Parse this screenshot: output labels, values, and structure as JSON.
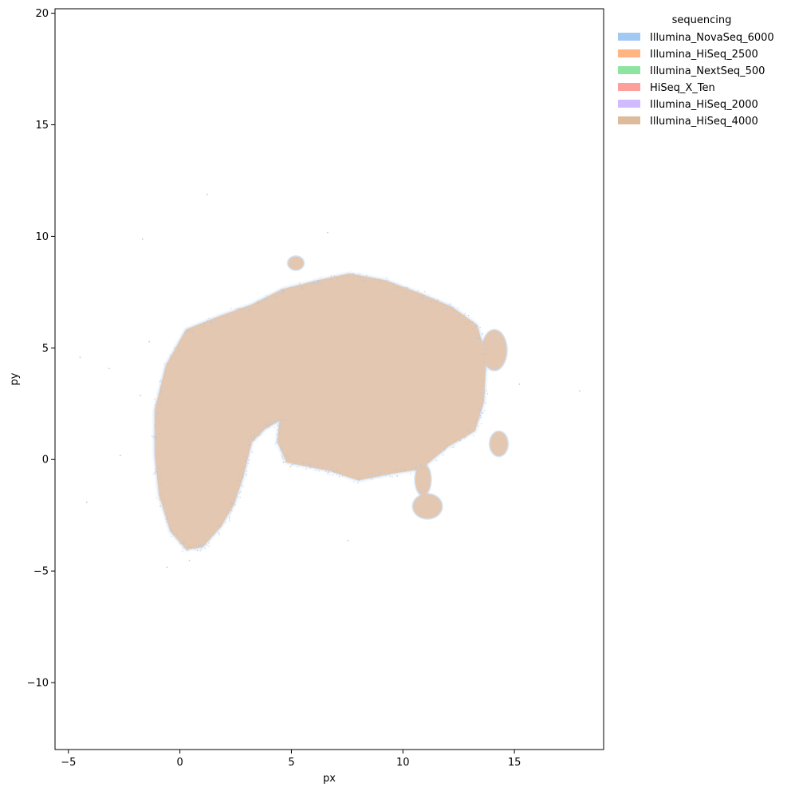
{
  "chart_data": {
    "type": "scatter",
    "title": "",
    "xlabel": "px",
    "ylabel": "py",
    "xlim": [
      -5.6,
      19.0
    ],
    "ylim": [
      -13.0,
      20.2
    ],
    "xticks": [
      -5,
      0,
      5,
      10,
      15
    ],
    "yticks": [
      -10,
      -5,
      0,
      5,
      10,
      15,
      20
    ],
    "xtick_labels": [
      "−5",
      "0",
      "5",
      "10",
      "15"
    ],
    "ytick_labels": [
      "−10",
      "−5",
      "0",
      "5",
      "10",
      "15",
      "20"
    ],
    "grid": false,
    "legend": {
      "title": "sequencing",
      "placement": "outside-top-right",
      "entries": [
        {
          "name": "Illumina_NovaSeq_6000",
          "color": "#a1c9f4"
        },
        {
          "name": "Illumina_HiSeq_2500",
          "color": "#ffb482"
        },
        {
          "name": "Illumina_NextSeq_500",
          "color": "#8de5a1"
        },
        {
          "name": "HiSeq_X_Ten",
          "color": "#ff9f9b"
        },
        {
          "name": "Illumina_HiSeq_2000",
          "color": "#d0bbff"
        },
        {
          "name": "Illumina_HiSeq_4000",
          "color": "#debb9b"
        }
      ]
    },
    "series": [
      {
        "name": "Illumina_HiSeq_4000",
        "color": "#debb9b",
        "regions": [
          {
            "shape": "polygon",
            "points": [
              [
                -1.1,
                2.2
              ],
              [
                -0.6,
                4.2
              ],
              [
                0.3,
                5.8
              ],
              [
                1.8,
                6.4
              ],
              [
                3.2,
                6.9
              ],
              [
                4.6,
                7.6
              ],
              [
                6.2,
                8.0
              ],
              [
                7.6,
                8.3
              ],
              [
                9.2,
                8.0
              ],
              [
                10.8,
                7.4
              ],
              [
                12.2,
                6.8
              ],
              [
                13.3,
                6.0
              ],
              [
                13.7,
                4.6
              ],
              [
                13.6,
                2.6
              ],
              [
                13.2,
                1.3
              ],
              [
                12.0,
                0.6
              ],
              [
                10.8,
                -0.4
              ],
              [
                9.5,
                -0.6
              ],
              [
                8.0,
                -0.9
              ],
              [
                6.8,
                -0.5
              ],
              [
                5.8,
                -0.3
              ],
              [
                4.8,
                -0.1
              ],
              [
                4.4,
                0.8
              ],
              [
                4.5,
                1.8
              ],
              [
                3.8,
                1.4
              ],
              [
                3.2,
                0.8
              ],
              [
                2.8,
                -0.8
              ],
              [
                2.4,
                -2.0
              ],
              [
                1.8,
                -3.0
              ],
              [
                1.0,
                -3.9
              ],
              [
                0.3,
                -4.0
              ],
              [
                -0.4,
                -3.2
              ],
              [
                -0.9,
                -1.6
              ],
              [
                -1.1,
                0.2
              ]
            ]
          },
          {
            "shape": "ellipse",
            "cx": 14.1,
            "cy": 4.9,
            "rx": 0.55,
            "ry": 0.9
          },
          {
            "shape": "ellipse",
            "cx": 14.3,
            "cy": 0.7,
            "rx": 0.4,
            "ry": 0.55
          },
          {
            "shape": "ellipse",
            "cx": 11.1,
            "cy": -2.1,
            "rx": 0.65,
            "ry": 0.55
          },
          {
            "shape": "ellipse",
            "cx": 10.9,
            "cy": -0.9,
            "rx": 0.35,
            "ry": 0.7
          },
          {
            "shape": "ellipse",
            "cx": 5.2,
            "cy": 8.8,
            "rx": 0.35,
            "ry": 0.3
          }
        ],
        "outliers": [
          [
            -4.5,
            4.6
          ],
          [
            -3.2,
            4.1
          ],
          [
            -2.7,
            0.2
          ],
          [
            -4.2,
            -1.9
          ],
          [
            -1.7,
            9.9
          ],
          [
            1.2,
            11.9
          ],
          [
            17.9,
            3.1
          ],
          [
            15.2,
            3.4
          ],
          [
            7.5,
            -3.6
          ],
          [
            -0.6,
            -4.8
          ],
          [
            0.4,
            -4.5
          ],
          [
            6.6,
            10.2
          ],
          [
            -1.8,
            2.9
          ],
          [
            -1.4,
            5.3
          ]
        ]
      },
      {
        "name": "Illumina_NovaSeq_6000",
        "color": "#a1c9f4",
        "note_scatter": "sparse points along outer boundary"
      }
    ]
  }
}
